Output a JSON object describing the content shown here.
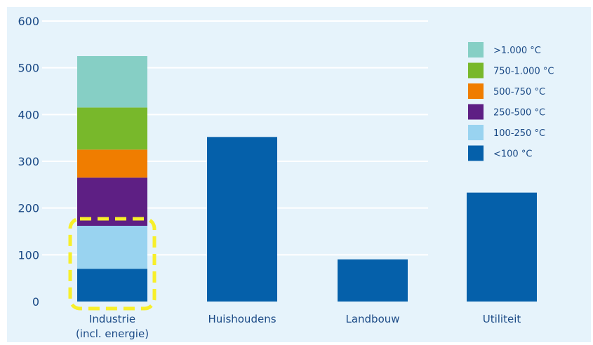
{
  "chart_data": {
    "type": "bar",
    "stacked": true,
    "categories": [
      "Industrie\n(incl. energie)",
      "Huishoudens",
      "Landbouw",
      "Utiliteit"
    ],
    "category_lines": [
      [
        "Industrie",
        "(incl. energie)"
      ],
      [
        "Huishoudens"
      ],
      [
        "Landbouw"
      ],
      [
        "Utiliteit"
      ]
    ],
    "series": [
      {
        "name": "<100 °C",
        "color": "#0560aa",
        "values": [
          70,
          352,
          90,
          233
        ]
      },
      {
        "name": "100-250 °C",
        "color": "#99d3f0",
        "values": [
          92,
          0,
          0,
          0
        ]
      },
      {
        "name": "250-500 °C",
        "color": "#5e1f84",
        "values": [
          103,
          0,
          0,
          0
        ]
      },
      {
        "name": "500-750 °C",
        "color": "#f07d00",
        "values": [
          60,
          0,
          0,
          0
        ]
      },
      {
        "name": "750-1.000 °C",
        "color": "#78b82b",
        "values": [
          90,
          0,
          0,
          0
        ]
      },
      {
        "name": ">1.000 °C",
        "color": "#86cfc5",
        "values": [
          110,
          0,
          0,
          0
        ]
      }
    ],
    "legend_order": [
      5,
      4,
      3,
      2,
      1,
      0
    ],
    "legend_position": "top-right",
    "ylim": [
      0,
      600
    ],
    "yticks": [
      0,
      100,
      200,
      300,
      400,
      500,
      600
    ],
    "grid": true,
    "title": "",
    "xlabel": "",
    "ylabel": "",
    "background_color": "#e6f3fb",
    "grid_color": "#ffffff",
    "text_color": "#1b4a86",
    "highlight": {
      "category_index": 0,
      "series_indices": [
        0,
        1
      ],
      "style": "dashed-rounded-box",
      "color": "#f7ef2a"
    }
  }
}
